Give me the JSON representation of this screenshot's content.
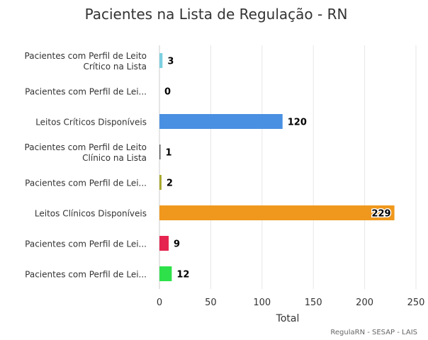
{
  "chart_data": {
    "type": "bar",
    "orientation": "horizontal",
    "title": "Pacientes na Lista de Regulação - RN",
    "xlabel": "Total",
    "credits": "RegulaRN - SESAP - LAIS",
    "xlim": [
      0,
      250
    ],
    "xticks": [
      "0",
      "50",
      "100",
      "150",
      "200",
      "250"
    ],
    "grid": true,
    "categories": [
      [
        "Pacientes com Perfil de Leito",
        "Crítico na Lista"
      ],
      [
        "Pacientes com Perfil de Lei..."
      ],
      [
        "Leitos Críticos Disponíveis"
      ],
      [
        "Pacientes com Perfil de Leito",
        "Clínico na Lista"
      ],
      [
        "Pacientes com Perfil de Lei..."
      ],
      [
        "Leitos Clínicos Disponíveis"
      ],
      [
        "Pacientes com Perfil de Lei..."
      ],
      [
        "Pacientes com Perfil de Lei..."
      ]
    ],
    "values": [
      3,
      0,
      120,
      1,
      2,
      229,
      9,
      12
    ],
    "colors": [
      "#7ccfe0",
      "#333333",
      "#4a90e2",
      "#555555",
      "#a8a82a",
      "#f0981d",
      "#e5254f",
      "#2ee14a"
    ]
  }
}
